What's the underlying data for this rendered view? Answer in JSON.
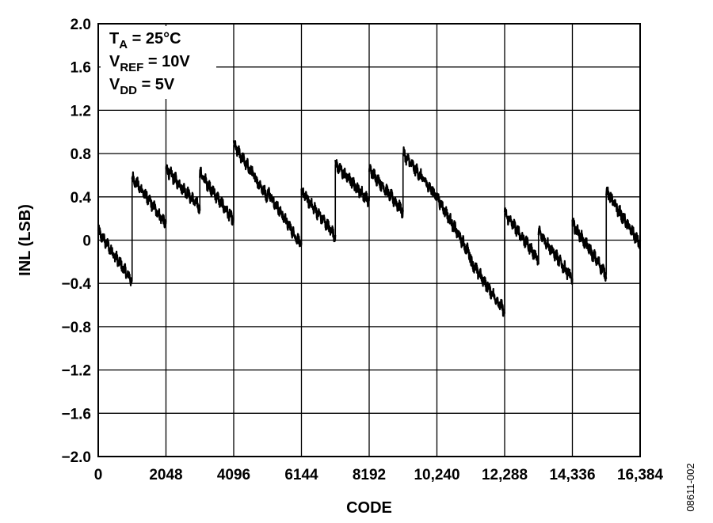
{
  "chart_data": {
    "type": "line",
    "xlabel": "CODE",
    "ylabel": "INL (LSB)",
    "xlim": [
      0,
      16384
    ],
    "ylim": [
      -2.0,
      2.0
    ],
    "x_ticks": [
      0,
      2048,
      4096,
      6144,
      8192,
      10240,
      12288,
      14336,
      16384
    ],
    "x_tick_labels": [
      "0",
      "2048",
      "4096",
      "6144",
      "8192",
      "10,240",
      "12,288",
      "14,336",
      "16,384"
    ],
    "y_ticks": [
      2.0,
      1.6,
      1.2,
      0.8,
      0.4,
      0,
      -0.4,
      -0.8,
      -1.2,
      -1.6,
      -2.0
    ],
    "y_tick_labels": [
      "2.0",
      "1.6",
      "1.2",
      "0.8",
      "0.4",
      "0",
      "−0.4",
      "−0.8",
      "−1.2",
      "−1.6",
      "−2.0"
    ],
    "grid": true,
    "annotation": [
      {
        "main": "T",
        "sub": "A",
        "rest": " = 25°C"
      },
      {
        "main": "V",
        "sub": "REF",
        "rest": " = 10V"
      },
      {
        "main": "V",
        "sub": "DD",
        "rest": " = 5V"
      }
    ],
    "series": [
      {
        "color": "#000000",
        "segments": [
          {
            "x": [
              0,
              1024
            ],
            "y": [
              0.08,
              -0.38
            ]
          },
          {
            "x": [
              1024,
              2048
            ],
            "y": [
              0.58,
              0.15
            ]
          },
          {
            "x": [
              2048,
              3072
            ],
            "y": [
              0.66,
              0.3
            ]
          },
          {
            "x": [
              3072,
              4096
            ],
            "y": [
              0.62,
              0.18
            ]
          },
          {
            "x": [
              4096,
              5120
            ],
            "y": [
              0.88,
              0.4
            ]
          },
          {
            "x": [
              5120,
              6144
            ],
            "y": [
              0.45,
              -0.05
            ]
          },
          {
            "x": [
              6144,
              7168
            ],
            "y": [
              0.45,
              0.04
            ]
          },
          {
            "x": [
              7168,
              8192
            ],
            "y": [
              0.7,
              0.36
            ]
          },
          {
            "x": [
              8192,
              9216
            ],
            "y": [
              0.66,
              0.26
            ]
          },
          {
            "x": [
              9216,
              10240
            ],
            "y": [
              0.8,
              0.4
            ]
          },
          {
            "x": [
              10240,
              11264
            ],
            "y": [
              0.4,
              -0.15
            ]
          },
          {
            "x": [
              11264,
              12288
            ],
            "y": [
              -0.2,
              -0.66
            ]
          },
          {
            "x": [
              12288,
              13312
            ],
            "y": [
              0.25,
              -0.18
            ]
          },
          {
            "x": [
              13312,
              14336
            ],
            "y": [
              0.08,
              -0.36
            ]
          },
          {
            "x": [
              14336,
              15360
            ],
            "y": [
              0.15,
              -0.32
            ]
          },
          {
            "x": [
              15360,
              16384
            ],
            "y": [
              0.45,
              -0.04
            ]
          }
        ]
      }
    ]
  },
  "figure_id": "08611-002"
}
